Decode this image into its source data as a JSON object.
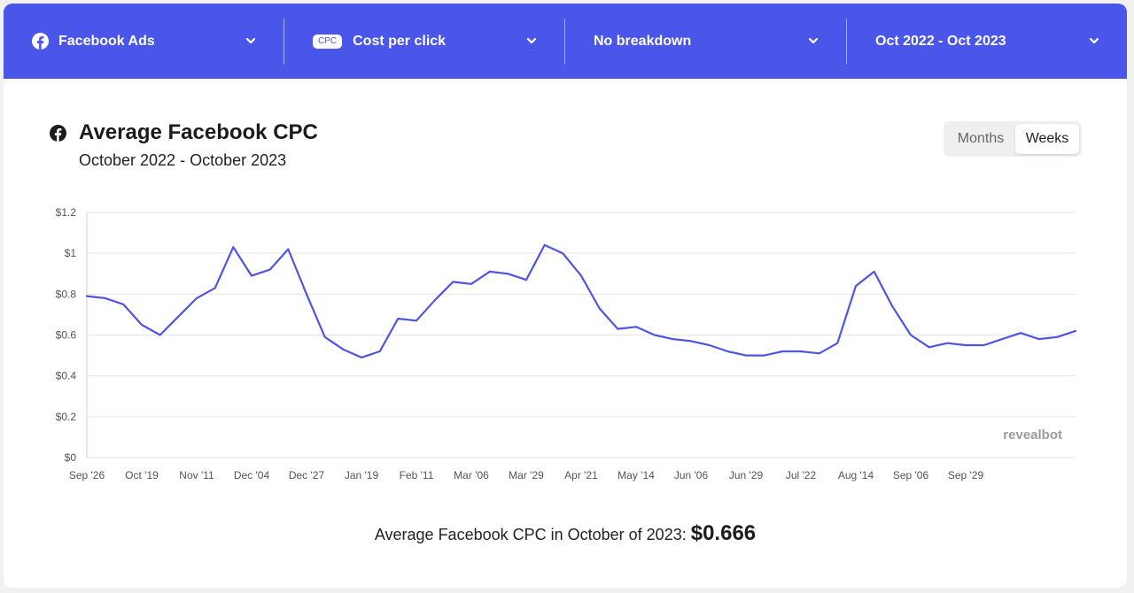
{
  "toolbar": {
    "platform": {
      "label": "Facebook Ads",
      "icon": "facebook-icon"
    },
    "metric": {
      "badge": "CPC",
      "label": "Cost per click"
    },
    "breakdown": {
      "label": "No breakdown"
    },
    "range": {
      "label": "Oct 2022 - Oct 2023"
    }
  },
  "header": {
    "title": "Average Facebook CPC",
    "subtitle": "October 2022 - October 2023",
    "toggle": {
      "months": "Months",
      "weeks": "Weeks",
      "selected": "Weeks"
    }
  },
  "watermark": "revealbot",
  "summary": {
    "text": "Average Facebook CPC in October of 2023:",
    "value": "$0.666"
  },
  "colors": {
    "accent": "#4a55e9",
    "line": "#4f55e0",
    "grid": "#e6e6e6"
  },
  "chart_data": {
    "type": "line",
    "title": "Average Facebook CPC",
    "ylim": [
      0,
      1.2
    ],
    "yticks": [
      0,
      0.2,
      0.4,
      0.6,
      0.8,
      1,
      1.2
    ],
    "ytick_labels": [
      "$0",
      "$0.2",
      "$0.4",
      "$0.6",
      "$0.8",
      "$1",
      "$1.2"
    ],
    "xtick_labels": [
      "Sep '26",
      "Oct '19",
      "Nov '11",
      "Dec '04",
      "Dec '27",
      "Jan '19",
      "Feb '11",
      "Mar '06",
      "Mar '29",
      "Apr '21",
      "May '14",
      "Jun '06",
      "Jun '29",
      "Jul '22",
      "Aug '14",
      "Sep '06",
      "Sep '29"
    ],
    "xtick_index": [
      0,
      3,
      6,
      9,
      12,
      15,
      18,
      21,
      24,
      27,
      30,
      33,
      36,
      39,
      42,
      45,
      48
    ],
    "values": [
      0.79,
      0.78,
      0.75,
      0.65,
      0.6,
      0.69,
      0.78,
      0.83,
      1.03,
      0.89,
      0.92,
      1.02,
      0.8,
      0.59,
      0.53,
      0.49,
      0.52,
      0.68,
      0.67,
      0.77,
      0.86,
      0.85,
      0.91,
      0.9,
      0.87,
      1.04,
      1.0,
      0.89,
      0.73,
      0.63,
      0.64,
      0.6,
      0.58,
      0.57,
      0.55,
      0.52,
      0.5,
      0.5,
      0.52,
      0.52,
      0.51,
      0.56,
      0.84,
      0.91,
      0.74,
      0.6,
      0.54,
      0.56,
      0.55,
      0.55,
      0.58,
      0.61,
      0.58,
      0.59,
      0.62
    ]
  }
}
